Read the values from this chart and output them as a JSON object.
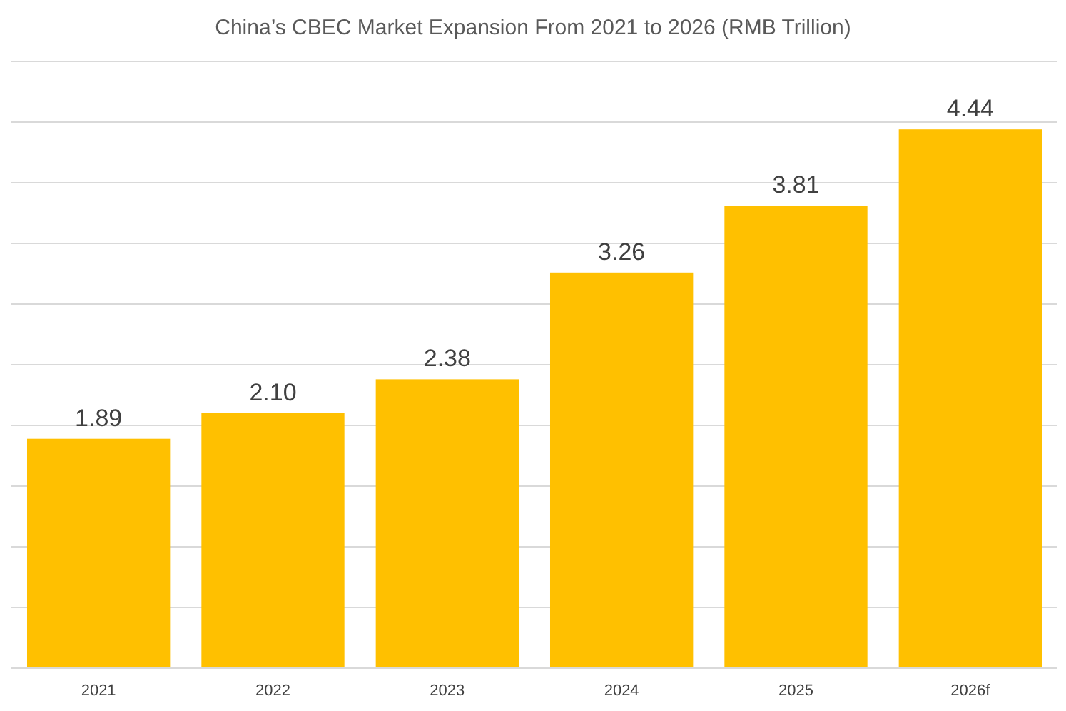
{
  "chart_data": {
    "type": "bar",
    "title": "China’s CBEC Market Expansion From 2021 to 2026 (RMB Trillion)",
    "categories": [
      "2021",
      "2022",
      "2023",
      "2024",
      "2025",
      "2026f"
    ],
    "values": [
      1.89,
      2.1,
      2.38,
      3.26,
      3.81,
      4.44
    ],
    "color": "#ffc000",
    "ylim": [
      0,
      5
    ],
    "yticks": [
      {
        "value": 0,
        "label": null
      },
      {
        "value": 0.5,
        "label": null
      },
      {
        "value": 1,
        "label": null
      },
      {
        "value": 1.5,
        "label": null
      },
      {
        "value": 2,
        "label": null
      },
      {
        "value": 2.5,
        "label": null
      },
      {
        "value": 3,
        "label": null
      },
      {
        "value": 3.5,
        "label": null
      },
      {
        "value": 4,
        "label": null
      },
      {
        "value": 4.5,
        "label": null
      },
      {
        "value": 5,
        "label": null
      }
    ],
    "value_labels": [
      "1.89",
      "2.10",
      "2.38",
      "3.26",
      "3.81",
      "4.44"
    ],
    "grid": "y",
    "tick_labels": "x"
  }
}
